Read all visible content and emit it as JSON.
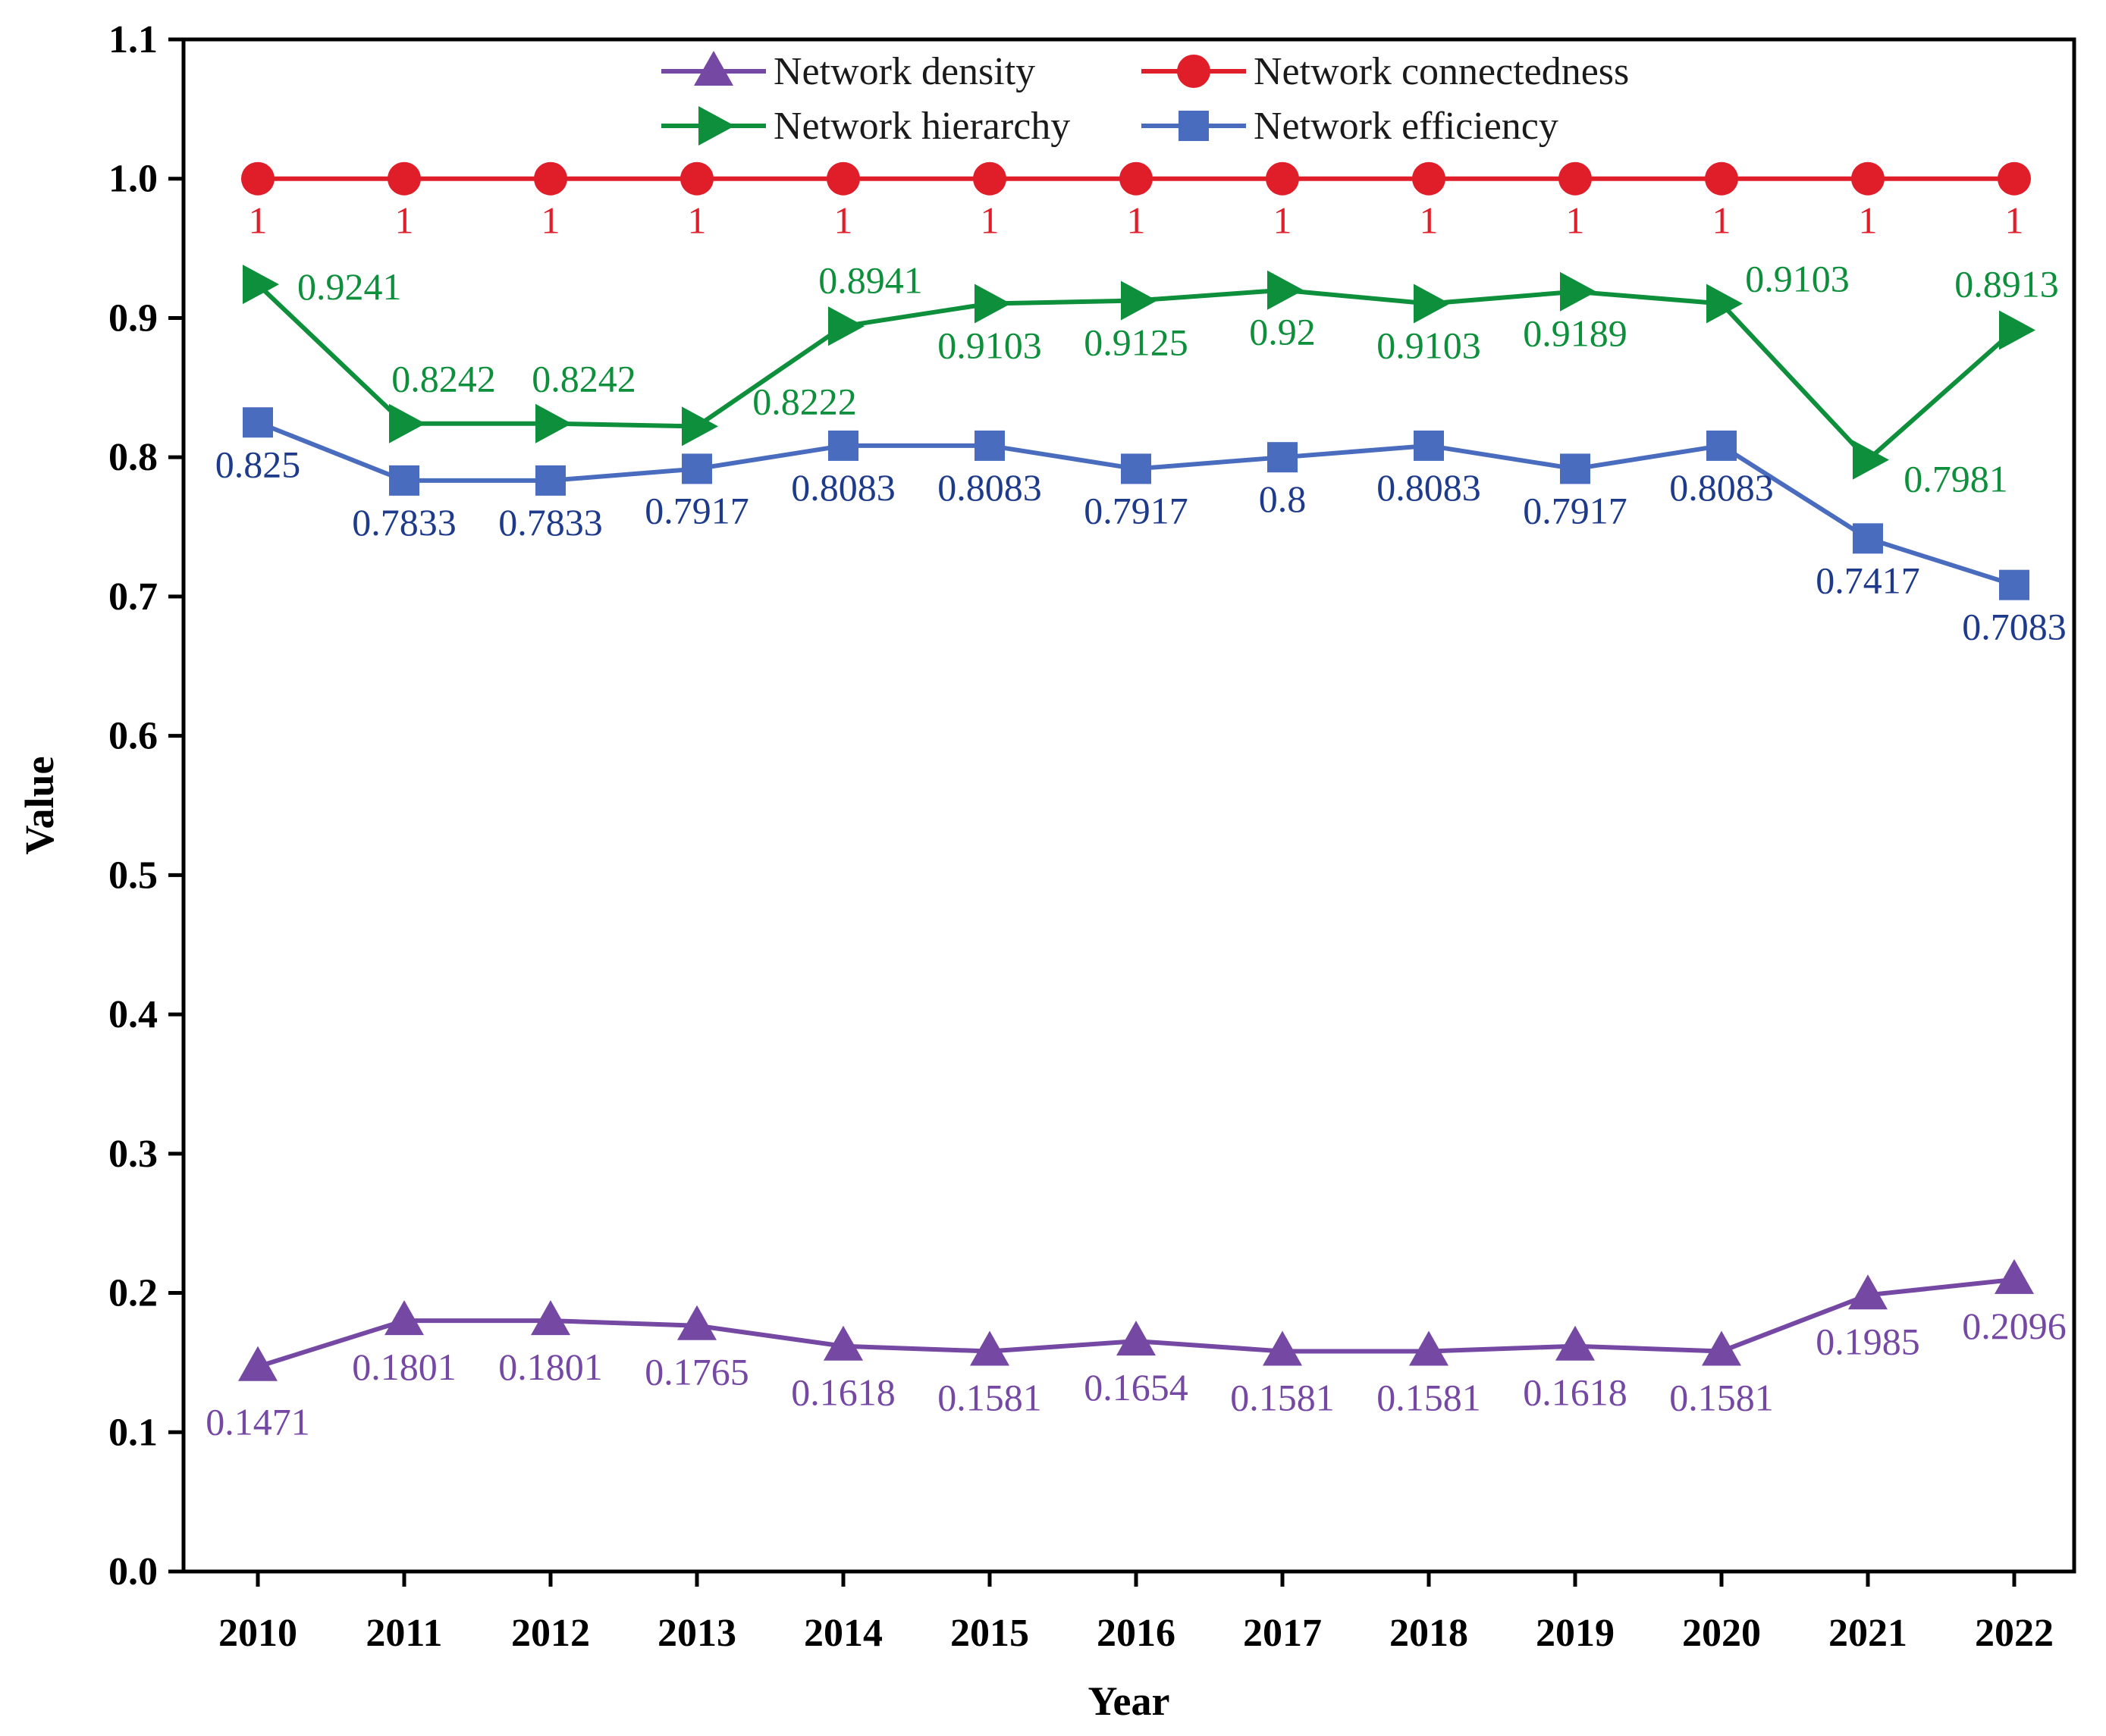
{
  "chart_data": {
    "type": "line",
    "title": "",
    "xlabel": "Year",
    "ylabel": "Value",
    "ylim": [
      0,
      1.1
    ],
    "yticks": [
      "0.0",
      "0.1",
      "0.2",
      "0.3",
      "0.4",
      "0.5",
      "0.6",
      "0.7",
      "0.8",
      "0.9",
      "1.0",
      "1.1"
    ],
    "categories": [
      "2010",
      "2011",
      "2012",
      "2013",
      "2014",
      "2015",
      "2016",
      "2017",
      "2018",
      "2019",
      "2020",
      "2021",
      "2022"
    ],
    "grid": false,
    "legend_position": "top",
    "series": [
      {
        "name": "Network density",
        "marker": "triangle-up",
        "color": "#7448a3",
        "values": [
          0.1471,
          0.1801,
          0.1801,
          0.1765,
          0.1618,
          0.1581,
          0.1654,
          0.1581,
          0.1581,
          0.1618,
          0.1581,
          0.1985,
          0.2096
        ],
        "labels": [
          "0.1471",
          "0.1801",
          "0.1801",
          "0.1765",
          "0.1618",
          "0.1581",
          "0.1654",
          "0.1581",
          "0.1581",
          "0.1618",
          "0.1581",
          "0.1985",
          "0.2096"
        ]
      },
      {
        "name": "Network connectedness",
        "marker": "circle",
        "color": "#e01e2a",
        "values": [
          1,
          1,
          1,
          1,
          1,
          1,
          1,
          1,
          1,
          1,
          1,
          1,
          1
        ],
        "labels": [
          "1",
          "1",
          "1",
          "1",
          "1",
          "1",
          "1",
          "1",
          "1",
          "1",
          "1",
          "1",
          "1"
        ]
      },
      {
        "name": "Network hierarchy",
        "marker": "triangle-right",
        "color": "#0d8f3b",
        "values": [
          0.9241,
          0.8242,
          0.8242,
          0.8222,
          0.8941,
          0.9103,
          0.9125,
          0.92,
          0.9103,
          0.9189,
          0.9103,
          0.7981,
          0.8913
        ],
        "labels": [
          "0.9241",
          "0.8242",
          "0.8242",
          "0.8222",
          "0.8941",
          "0.9103",
          "0.9125",
          "0.92",
          "0.9103",
          "0.9189",
          "0.9103",
          "0.7981",
          "0.8913"
        ]
      },
      {
        "name": "Network efficiency",
        "marker": "square",
        "color": "#4a6cbf",
        "label_color": "#1e3a8a",
        "values": [
          0.825,
          0.7833,
          0.7833,
          0.7917,
          0.8083,
          0.8083,
          0.7917,
          0.8,
          0.8083,
          0.7917,
          0.8083,
          0.7417,
          0.7083
        ],
        "labels": [
          "0.825",
          "0.7833",
          "0.7833",
          "0.7917",
          "0.8083",
          "0.8083",
          "0.7917",
          "0.8",
          "0.8083",
          "0.7917",
          "0.8083",
          "0.7417",
          "0.7083"
        ]
      }
    ]
  }
}
